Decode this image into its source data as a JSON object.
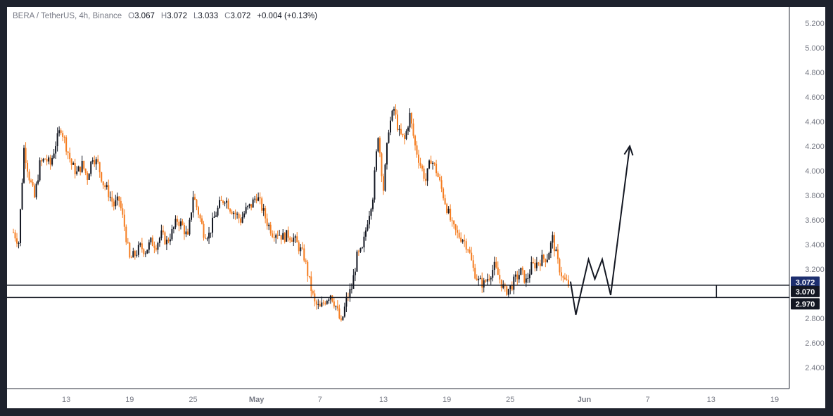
{
  "legend": {
    "symbol": "BERA / TetherUS, 4h, Binance",
    "open_label": "O",
    "open": "3.067",
    "high_label": "H",
    "high": "3.072",
    "low_label": "L",
    "low": "3.033",
    "close_label": "C",
    "close": "3.072",
    "change": "+0.004 (+0.13%)"
  },
  "price_tags": {
    "last": "3.072",
    "upper_level": "3.070",
    "lower_level": "2.970"
  },
  "colors": {
    "up": "#131722",
    "down": "#f57c1f",
    "last_price_bg": "#1d2f6f",
    "level_bg": "#131722",
    "drawing": "#131722"
  },
  "chart_data": {
    "type": "candlestick",
    "title": "",
    "xlabel": "",
    "ylabel": "",
    "ylim": [
      2.23,
      5.33
    ],
    "y_ticks": [
      "5.200",
      "5.000",
      "4.800",
      "4.600",
      "4.400",
      "4.200",
      "4.000",
      "3.800",
      "3.600",
      "3.400",
      "3.200",
      "2.800",
      "2.600",
      "2.400"
    ],
    "x_ticks": [
      "13",
      "19",
      "25",
      "May",
      "7",
      "13",
      "19",
      "25",
      "Jun",
      "7",
      "13",
      "19"
    ],
    "x_tick_days": [
      13,
      19,
      25,
      31,
      37,
      43,
      49,
      55,
      62,
      68,
      74,
      80
    ],
    "x_range_days": [
      7.4,
      81.4
    ],
    "price_path": [
      [
        8,
        3.5
      ],
      [
        8.5,
        3.42
      ],
      [
        9,
        4.18
      ],
      [
        9.5,
        3.95
      ],
      [
        10,
        3.78
      ],
      [
        10.5,
        4.05
      ],
      [
        11,
        4.1
      ],
      [
        11.5,
        4.05
      ],
      [
        12,
        4.22
      ],
      [
        12.5,
        4.35
      ],
      [
        13,
        4.2
      ],
      [
        13.5,
        4.05
      ],
      [
        14,
        3.98
      ],
      [
        14.5,
        4.05
      ],
      [
        15,
        3.95
      ],
      [
        15.5,
        4.12
      ],
      [
        16,
        4.05
      ],
      [
        16.5,
        3.9
      ],
      [
        17,
        3.82
      ],
      [
        17.5,
        3.72
      ],
      [
        18,
        3.76
      ],
      [
        18.5,
        3.55
      ],
      [
        19,
        3.28
      ],
      [
        19.5,
        3.32
      ],
      [
        20,
        3.38
      ],
      [
        20.5,
        3.35
      ],
      [
        21,
        3.42
      ],
      [
        21.5,
        3.4
      ],
      [
        22,
        3.48
      ],
      [
        22.5,
        3.42
      ],
      [
        23,
        3.5
      ],
      [
        23.5,
        3.6
      ],
      [
        24,
        3.55
      ],
      [
        24.5,
        3.45
      ],
      [
        25,
        3.8
      ],
      [
        25.5,
        3.66
      ],
      [
        26,
        3.5
      ],
      [
        26.5,
        3.48
      ],
      [
        27,
        3.62
      ],
      [
        27.5,
        3.72
      ],
      [
        28,
        3.78
      ],
      [
        28.5,
        3.7
      ],
      [
        29,
        3.65
      ],
      [
        29.5,
        3.6
      ],
      [
        30,
        3.68
      ],
      [
        30.5,
        3.72
      ],
      [
        31,
        3.8
      ],
      [
        31.5,
        3.7
      ],
      [
        32,
        3.58
      ],
      [
        32.5,
        3.5
      ],
      [
        33,
        3.5
      ],
      [
        33.5,
        3.46
      ],
      [
        34,
        3.48
      ],
      [
        34.5,
        3.45
      ],
      [
        35,
        3.38
      ],
      [
        35.5,
        3.3
      ],
      [
        36,
        3.1
      ],
      [
        36.5,
        2.92
      ],
      [
        37,
        2.88
      ],
      [
        37.5,
        2.95
      ],
      [
        38,
        3.0
      ],
      [
        38.5,
        2.9
      ],
      [
        39,
        2.75
      ],
      [
        39.5,
        2.95
      ],
      [
        40,
        3.05
      ],
      [
        40.5,
        3.3
      ],
      [
        41,
        3.35
      ],
      [
        41.5,
        3.6
      ],
      [
        42,
        3.8
      ],
      [
        42.5,
        4.3
      ],
      [
        43,
        3.85
      ],
      [
        43.5,
        4.35
      ],
      [
        44,
        4.5
      ],
      [
        44.5,
        4.3
      ],
      [
        45,
        4.25
      ],
      [
        45.5,
        4.45
      ],
      [
        46,
        4.2
      ],
      [
        46.5,
        4.05
      ],
      [
        47,
        3.92
      ],
      [
        47.5,
        4.1
      ],
      [
        48,
        4.0
      ],
      [
        48.5,
        3.85
      ],
      [
        49,
        3.7
      ],
      [
        49.5,
        3.55
      ],
      [
        50,
        3.48
      ],
      [
        50.5,
        3.45
      ],
      [
        51,
        3.38
      ],
      [
        51.5,
        3.2
      ],
      [
        52,
        3.1
      ],
      [
        52.5,
        3.08
      ],
      [
        53,
        3.15
      ],
      [
        53.5,
        3.22
      ],
      [
        54,
        3.12
      ],
      [
        54.5,
        3.02
      ],
      [
        55,
        3.05
      ],
      [
        55.5,
        3.12
      ],
      [
        56,
        3.18
      ],
      [
        56.5,
        3.1
      ],
      [
        57,
        3.22
      ],
      [
        57.5,
        3.25
      ],
      [
        58,
        3.28
      ],
      [
        58.5,
        3.3
      ],
      [
        59,
        3.45
      ],
      [
        59.5,
        3.25
      ],
      [
        60,
        3.12
      ],
      [
        60.5,
        3.072
      ]
    ],
    "levels": [
      {
        "label": "3.070",
        "value": 3.07
      },
      {
        "label": "2.970",
        "value": 2.97
      }
    ],
    "last_price": 3.072,
    "projection": [
      [
        60.7,
        3.1
      ],
      [
        61.2,
        2.83
      ],
      [
        62.4,
        3.28
      ],
      [
        63.0,
        3.12
      ],
      [
        63.7,
        3.28
      ],
      [
        64.5,
        2.99
      ],
      [
        66.3,
        4.2
      ]
    ],
    "annotation_marker_day": 74.5
  }
}
